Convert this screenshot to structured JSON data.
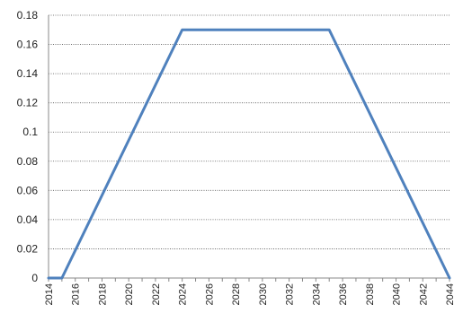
{
  "chart_data": {
    "type": "line",
    "title": "",
    "xlabel": "",
    "ylabel": "",
    "x_ticks": [
      "2014",
      "2016",
      "2018",
      "2020",
      "2022",
      "2024",
      "2026",
      "2028",
      "2030",
      "2032",
      "2034",
      "2036",
      "2038",
      "2040",
      "2042",
      "2044"
    ],
    "y_ticks": [
      "0",
      "0.02",
      "0.04",
      "0.06",
      "0.08",
      "0.1",
      "0.12",
      "0.14",
      "0.16",
      "0.18"
    ],
    "xlim": [
      2014,
      2044
    ],
    "ylim": [
      0,
      0.18
    ],
    "grid": true,
    "legend": "none",
    "series": [
      {
        "color": "#4F81BD",
        "points": [
          {
            "x": 2014,
            "y": 0
          },
          {
            "x": 2015,
            "y": 0
          },
          {
            "x": 2024,
            "y": 0.17
          },
          {
            "x": 2035,
            "y": 0.17
          },
          {
            "x": 2044,
            "y": 0
          }
        ]
      }
    ]
  }
}
